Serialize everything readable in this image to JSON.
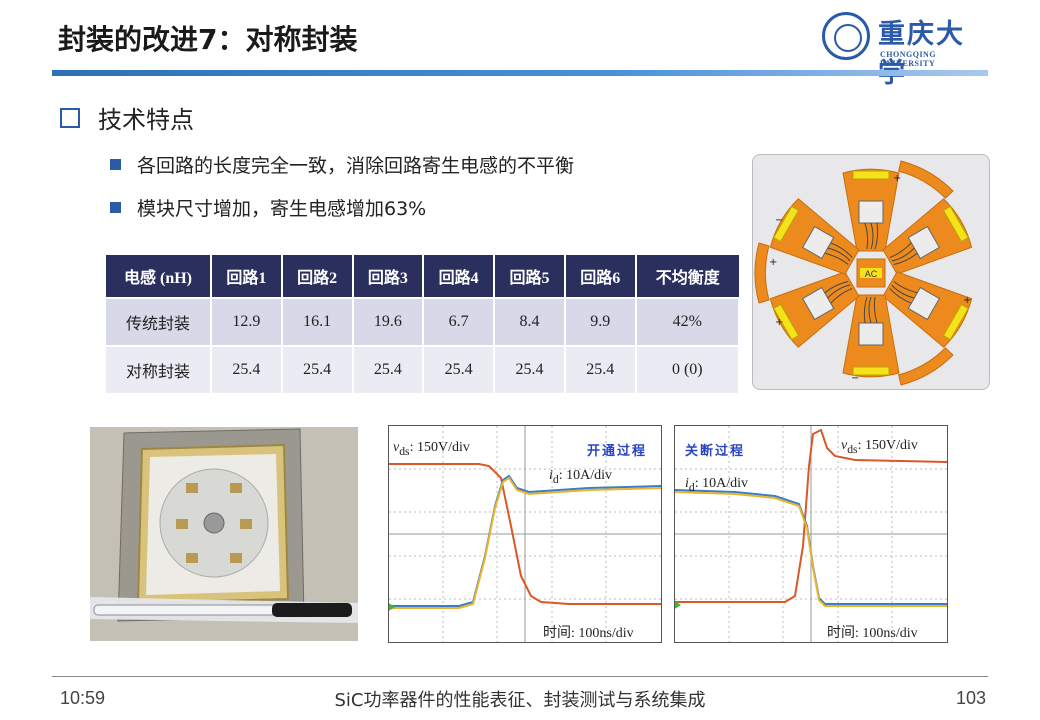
{
  "header": {
    "title": "封装的改进7：对称封装",
    "logo_cn": "重庆大学",
    "logo_en": "CHONGQING UNIVERSITY"
  },
  "section": {
    "heading": "技术特点",
    "bullets": [
      "各回路的长度完全一致，消除回路寄生电感的不平衡",
      "模块尺寸增加，寄生电感增加63%"
    ]
  },
  "table": {
    "headers": [
      "电感 (nH)",
      "回路1",
      "回路2",
      "回路3",
      "回路4",
      "回路5",
      "回路6",
      "不均衡度"
    ],
    "rows": [
      {
        "label": "传统封装",
        "cells": [
          "12.9",
          "16.1",
          "19.6",
          "6.7",
          "8.4",
          "9.9",
          "42%"
        ]
      },
      {
        "label": "对称封装",
        "cells": [
          "25.4",
          "25.4",
          "25.4",
          "25.4",
          "25.4",
          "25.4",
          "0 (0)"
        ]
      }
    ]
  },
  "diagram": {
    "center_label": "AC",
    "plus": "+",
    "minus": "−"
  },
  "scope_on": {
    "title": "开通过程",
    "vds": "150V/div",
    "id": "10A/div",
    "time": "100ns/div",
    "time_prefix": "时间:",
    "vds_sym": "v",
    "vds_sub": "ds",
    "id_sym": "i",
    "id_sub": "d"
  },
  "scope_off": {
    "title": "关断过程",
    "vds": "150V/div",
    "id": "10A/div",
    "time": "100ns/div",
    "time_prefix": "时间:",
    "vds_sym": "v",
    "vds_sub": "ds",
    "id_sym": "i",
    "id_sub": "d"
  },
  "colors": {
    "accent": "#2a5aa8",
    "table_header": "#2b2f5e",
    "voltage": "#d9582a",
    "current": "#e8b52c",
    "current2": "#3a7ec8"
  },
  "footer": {
    "time": "10:59",
    "title": "SiC功率器件的性能表征、封装测试与系统集成",
    "page": "103"
  }
}
